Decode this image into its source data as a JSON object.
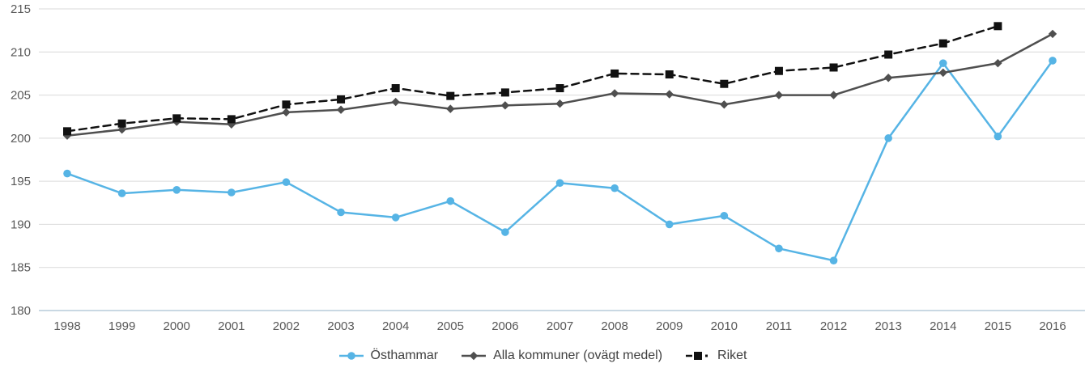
{
  "chart_data": {
    "type": "line",
    "title": "",
    "xlabel": "",
    "ylabel": "",
    "x": [
      1998,
      1999,
      2000,
      2001,
      2002,
      2003,
      2004,
      2005,
      2006,
      2007,
      2008,
      2009,
      2010,
      2011,
      2012,
      2013,
      2014,
      2015,
      2016
    ],
    "series": [
      {
        "name": "Östhammar",
        "color": "#56B4E5",
        "marker": "circle",
        "line_style": "solid",
        "values": [
          195.9,
          193.6,
          194.0,
          193.7,
          194.9,
          191.4,
          190.8,
          192.7,
          189.1,
          194.8,
          194.2,
          190.0,
          191.0,
          187.2,
          185.8,
          200.0,
          208.7,
          200.2,
          209.0
        ]
      },
      {
        "name": "Alla kommuner (ovägt medel)",
        "color": "#4F4F4F",
        "marker": "diamond",
        "line_style": "solid",
        "values": [
          200.3,
          201.0,
          201.9,
          201.6,
          203.0,
          203.3,
          204.2,
          203.4,
          203.8,
          204.0,
          205.2,
          205.1,
          203.9,
          205.0,
          205.0,
          207.0,
          207.6,
          208.7,
          212.1
        ]
      },
      {
        "name": "Riket",
        "color": "#111111",
        "marker": "square",
        "line_style": "dashed",
        "values": [
          200.8,
          201.7,
          202.3,
          202.2,
          203.9,
          204.5,
          205.8,
          204.9,
          205.3,
          205.8,
          207.5,
          207.4,
          206.3,
          207.8,
          208.2,
          209.7,
          211.0,
          213.0,
          null
        ]
      }
    ],
    "ylim": [
      180,
      215
    ],
    "yticks": [
      180,
      185,
      190,
      195,
      200,
      205,
      210,
      215
    ],
    "grid": true,
    "legend_position": "bottom"
  },
  "colors": {
    "gridline": "#D9D9D9",
    "axis_line": "#B7CCDA",
    "tick_label": "#595959",
    "legend_text": "#3F3F3F",
    "background": "#FFFFFF"
  }
}
